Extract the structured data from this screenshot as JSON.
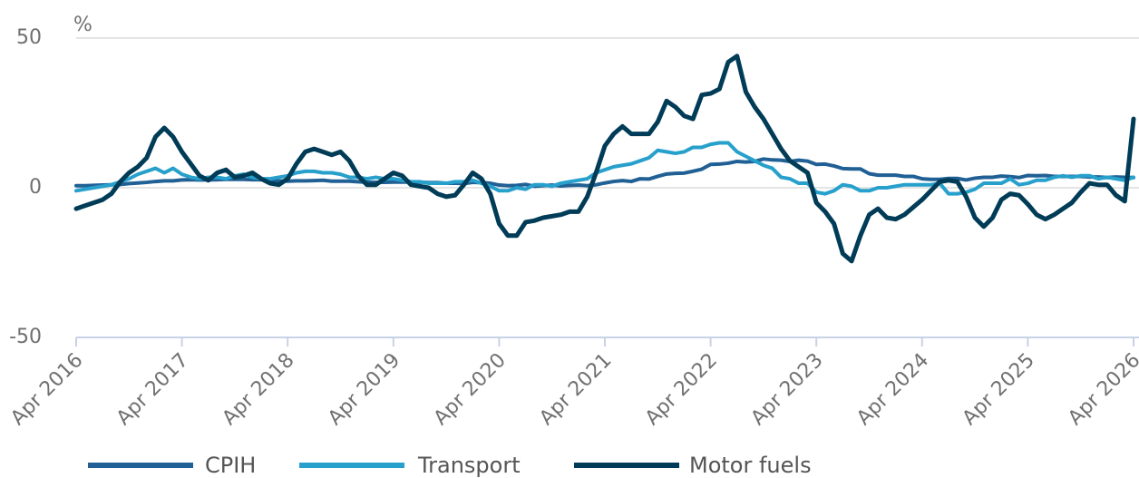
{
  "chart_data": {
    "type": "line",
    "ylabel": "%",
    "categories": [
      "Apr 2016",
      null,
      null,
      null,
      null,
      null,
      null,
      null,
      null,
      null,
      null,
      null,
      "Apr 2017",
      null,
      null,
      null,
      null,
      null,
      null,
      null,
      null,
      null,
      null,
      null,
      "Apr 2018",
      null,
      null,
      null,
      null,
      null,
      null,
      null,
      null,
      null,
      null,
      null,
      "Apr 2019",
      null,
      null,
      null,
      null,
      null,
      null,
      null,
      null,
      null,
      null,
      null,
      "Apr 2020",
      null,
      null,
      null,
      null,
      null,
      null,
      null,
      null,
      null,
      null,
      null,
      "Apr 2021",
      null,
      null,
      null,
      null,
      null,
      null,
      null,
      null,
      null,
      null,
      null,
      "Apr 2022",
      null,
      null,
      null,
      null,
      null,
      null,
      null,
      null,
      null,
      null,
      null,
      "Apr 2023",
      null,
      null,
      null,
      null,
      null,
      null,
      null,
      null,
      null,
      null,
      null,
      "Apr 2024",
      null,
      null,
      null,
      null,
      null,
      null,
      null,
      null,
      null,
      null,
      null,
      "Apr 2025",
      null,
      null,
      null,
      null,
      null,
      null,
      null,
      null,
      null,
      null,
      null,
      "Apr 2026"
    ],
    "series": [
      {
        "name": "CPIH",
        "color": "#206095",
        "values": [
          0.7,
          0.7,
          0.8,
          0.9,
          1.0,
          1.1,
          1.4,
          1.6,
          1.8,
          2.1,
          2.3,
          2.3,
          2.6,
          2.7,
          2.6,
          2.6,
          2.7,
          2.8,
          2.8,
          2.8,
          2.7,
          2.7,
          2.5,
          2.3,
          2.2,
          2.3,
          2.3,
          2.4,
          2.5,
          2.2,
          2.2,
          2.2,
          2.0,
          1.8,
          1.8,
          1.8,
          1.9,
          1.9,
          1.9,
          1.9,
          1.7,
          1.7,
          1.5,
          1.5,
          1.4,
          1.8,
          1.7,
          1.5,
          0.9,
          0.7,
          0.8,
          1.1,
          0.5,
          0.7,
          0.9,
          0.6,
          0.8,
          0.9,
          0.7,
          1.0,
          1.6,
          2.1,
          2.4,
          2.1,
          3.0,
          2.9,
          3.8,
          4.6,
          4.8,
          4.9,
          5.5,
          6.2,
          7.8,
          7.9,
          8.2,
          8.8,
          8.6,
          8.8,
          9.6,
          9.3,
          9.2,
          8.8,
          9.2,
          8.9,
          7.8,
          7.9,
          7.3,
          6.4,
          6.3,
          6.3,
          4.7,
          4.2,
          4.2,
          4.2,
          3.8,
          3.8,
          3.0,
          2.8,
          2.8,
          3.1,
          3.1,
          2.6,
          3.2,
          3.5,
          3.5,
          3.9,
          3.7,
          3.4,
          4.1,
          4.0,
          4.1,
          3.8,
          3.8,
          3.8,
          3.8,
          3.6,
          3.6,
          3.4,
          3.6,
          3.5,
          3.4
        ]
      },
      {
        "name": "Transport",
        "color": "#27a0cc",
        "values": [
          -1.0,
          -0.5,
          0.0,
          0.5,
          1.0,
          2.0,
          3.0,
          4.5,
          5.5,
          6.5,
          5.0,
          6.5,
          4.5,
          3.5,
          3.0,
          3.5,
          3.5,
          3.0,
          4.0,
          4.5,
          3.5,
          3.0,
          3.0,
          3.5,
          4.0,
          5.0,
          5.5,
          5.5,
          5.0,
          5.0,
          4.5,
          3.5,
          3.5,
          3.0,
          3.5,
          3.0,
          3.0,
          2.5,
          2.0,
          2.0,
          1.5,
          1.5,
          1.5,
          2.0,
          2.0,
          2.5,
          1.5,
          0.5,
          -1.0,
          -1.0,
          0.0,
          -0.5,
          1.0,
          1.0,
          0.5,
          1.5,
          2.0,
          2.5,
          3.0,
          5.0,
          6.0,
          7.0,
          7.5,
          8.0,
          9.0,
          10.0,
          12.5,
          12.0,
          11.5,
          12.0,
          13.5,
          13.5,
          14.5,
          15.0,
          15.0,
          12.0,
          10.5,
          9.0,
          7.5,
          6.5,
          3.5,
          3.0,
          1.5,
          1.5,
          -1.5,
          -2.0,
          -1.0,
          1.0,
          0.5,
          -1.0,
          -1.0,
          0.0,
          0.0,
          0.5,
          1.0,
          1.0,
          1.0,
          1.0,
          1.5,
          -2.0,
          -2.0,
          -1.5,
          -0.5,
          1.5,
          1.5,
          1.5,
          3.0,
          1.0,
          1.5,
          2.5,
          2.5,
          3.5,
          4.0,
          3.5,
          4.0,
          4.0,
          3.0,
          3.5,
          3.0,
          2.5,
          3.5
        ]
      },
      {
        "name": "Motor fuels",
        "color": "#003c57",
        "values": [
          -7,
          -6,
          -5,
          -4,
          -2,
          2,
          5,
          7,
          10,
          17,
          20,
          17,
          12,
          8,
          4,
          2.5,
          5,
          6,
          3.5,
          4,
          5,
          3,
          1.5,
          1,
          3,
          8,
          12,
          13,
          12,
          11,
          12,
          9,
          4,
          1,
          1,
          3,
          5,
          4,
          1,
          0.5,
          0,
          -2,
          -3,
          -2.5,
          1,
          5,
          3,
          -2,
          -12,
          -16,
          -16,
          -11.5,
          -11,
          -10,
          -9.5,
          -9,
          -8,
          -8,
          -3,
          5,
          14,
          18,
          20.5,
          18,
          18,
          18,
          22,
          29,
          27,
          24,
          23,
          31,
          31.5,
          33,
          42,
          44,
          32,
          27,
          23,
          18,
          13,
          9,
          7,
          5,
          -5,
          -8,
          -12,
          -22,
          -24.5,
          -16,
          -9,
          -7,
          -10,
          -10.5,
          -9,
          -6.5,
          -4,
          -1,
          2,
          2.5,
          2,
          -3,
          -10,
          -13,
          -10,
          -4,
          -2,
          -2.5,
          -5.5,
          -9,
          -10.5,
          -9,
          -7,
          -5,
          -1.5,
          1.5,
          1,
          1,
          -2.5,
          -4.5,
          23
        ]
      }
    ],
    "ylim": [
      -50,
      50
    ],
    "yticks": [
      -50,
      0,
      50
    ],
    "grid": true
  }
}
